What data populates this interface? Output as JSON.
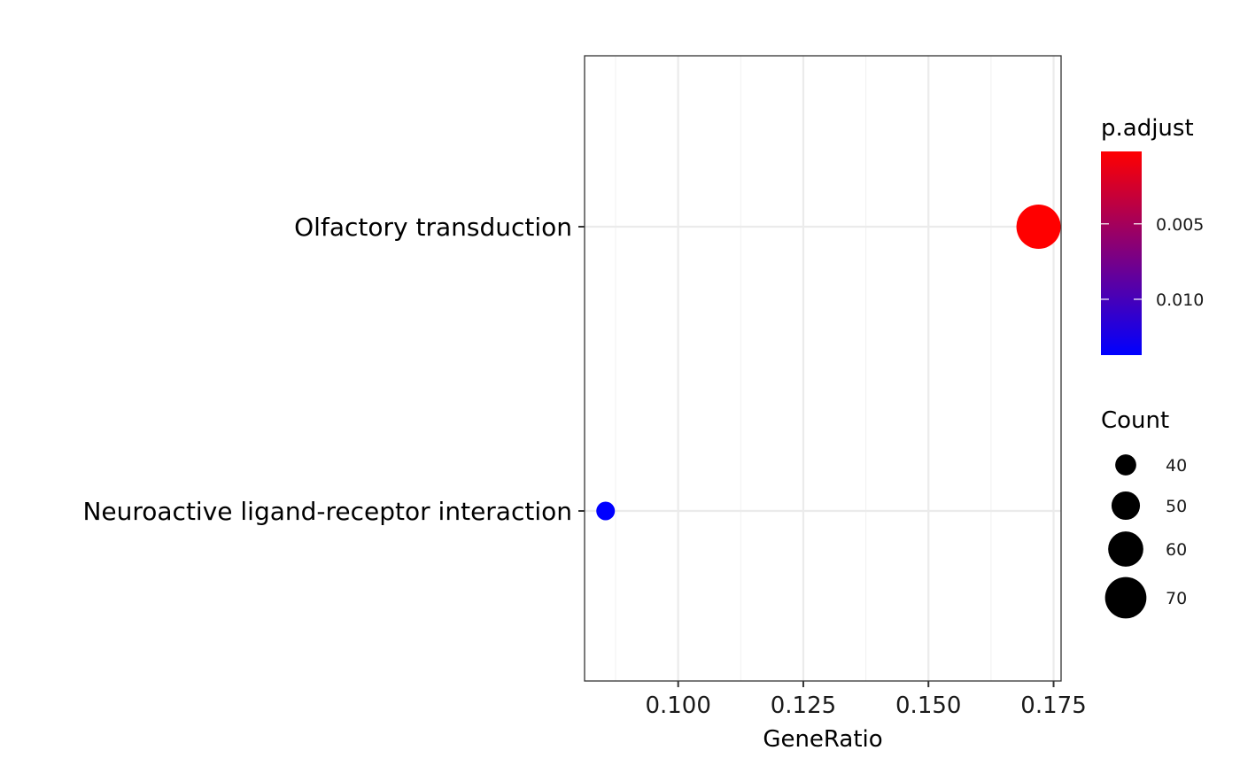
{
  "chart_data": {
    "type": "scatter",
    "title": "",
    "xlabel": "GeneRatio",
    "ylabel": "",
    "xlim": [
      0.0813,
      0.1765
    ],
    "x_ticks": [
      0.1,
      0.125,
      0.15,
      0.175
    ],
    "x_tick_labels": [
      "0.100",
      "0.125",
      "0.150",
      "0.175"
    ],
    "categories": [
      "Olfactory transduction",
      "Neuroactive ligand-receptor interaction"
    ],
    "points": [
      {
        "category": "Olfactory transduction",
        "x": 0.172,
        "count": 75,
        "p_adjust": 0.0002
      },
      {
        "category": "Neuroactive ligand-receptor interaction",
        "x": 0.0855,
        "count": 37,
        "p_adjust": 0.0137
      }
    ],
    "grid": true,
    "color_legend": {
      "title": "p.adjust",
      "low_color": "#0000FF",
      "high_color": "#FF0000",
      "range": [
        0.0002,
        0.0137
      ],
      "ticks": [
        0.005,
        0.01
      ],
      "tick_labels": [
        "0.005",
        "0.010"
      ],
      "placement": "right"
    },
    "size_legend": {
      "title": "Count",
      "values": [
        40,
        50,
        60,
        70
      ],
      "labels": [
        "40",
        "50",
        "60",
        "70"
      ],
      "placement": "right"
    }
  }
}
